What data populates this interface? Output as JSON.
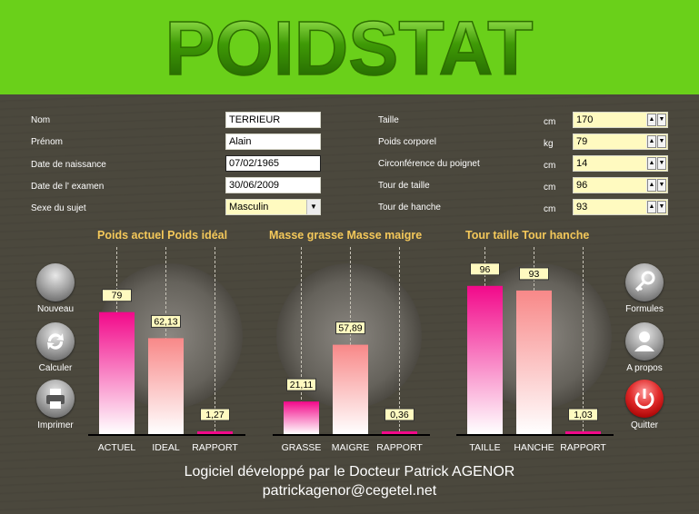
{
  "app_title": "POIDSTAT",
  "subject": {
    "nom_label": "Nom",
    "nom_value": "TERRIEUR",
    "prenom_label": "Prénom",
    "prenom_value": "Alain",
    "naissance_label": "Date de naissance",
    "naissance_value": "07/02/1965",
    "examen_label": "Date de l' examen",
    "examen_value": "30/06/2009",
    "sexe_label": "Sexe du sujet",
    "sexe_value": "Masculin"
  },
  "measures": [
    {
      "label": "Taille",
      "unit": "cm",
      "value": "170"
    },
    {
      "label": "Poids corporel",
      "unit": "kg",
      "value": "79"
    },
    {
      "label": "Circonférence du poignet",
      "unit": "cm",
      "value": "14"
    },
    {
      "label": "Tour de taille",
      "unit": "cm",
      "value": "96"
    },
    {
      "label": "Tour de hanche",
      "unit": "cm",
      "value": "93"
    }
  ],
  "buttons": {
    "nouveau": "Nouveau",
    "calculer": "Calculer",
    "imprimer": "Imprimer",
    "formules": "Formules",
    "apropos": "A propos",
    "quitter": "Quitter"
  },
  "colors": {
    "pink": "#f2098a",
    "salmon": "#f88888",
    "header": "#6ad01a",
    "title": "#f4c85a"
  },
  "chart_data": [
    {
      "type": "bar",
      "title": "Poids actuel Poids idéal",
      "categories": [
        "ACTUEL",
        "IDEAL",
        "RAPPORT"
      ],
      "values": [
        79,
        62.13,
        1.27
      ],
      "value_labels": [
        "79",
        "62,13",
        "1,27"
      ]
    },
    {
      "type": "bar",
      "title": "Masse grasse Masse maigre",
      "categories": [
        "GRASSE",
        "MAIGRE",
        "RAPPORT"
      ],
      "values": [
        21.11,
        57.89,
        0.36
      ],
      "value_labels": [
        "21,11",
        "57,89",
        "0,36"
      ]
    },
    {
      "type": "bar",
      "title": "Tour taille Tour hanche",
      "categories": [
        "TAILLE",
        "HANCHE",
        "RAPPORT"
      ],
      "values": [
        96,
        93,
        1.03
      ],
      "value_labels": [
        "96",
        "93",
        "1,03"
      ]
    }
  ],
  "footer": {
    "line1": "Logiciel développé par le Docteur Patrick AGENOR",
    "line2": "patrickagenor@cegetel.net"
  }
}
